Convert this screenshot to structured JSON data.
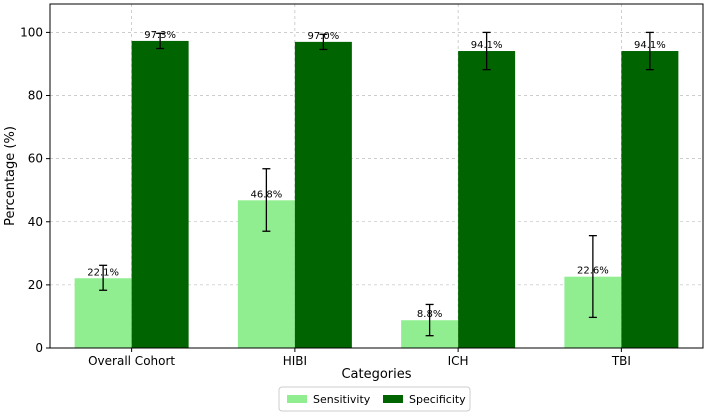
{
  "chart_data": {
    "type": "bar",
    "categories": [
      "Overall Cohort",
      "HIBI",
      "ICH",
      "TBI"
    ],
    "series": [
      {
        "name": "Sensitivity",
        "color": "#90EE90",
        "values": [
          22.1,
          46.8,
          8.8,
          22.6
        ],
        "labels": [
          "22.1%",
          "46.8%",
          "8.8%",
          "22.6%"
        ],
        "error_low": [
          18.3,
          37.0,
          3.9,
          9.7
        ],
        "error_high": [
          26.2,
          56.8,
          13.8,
          35.6
        ]
      },
      {
        "name": "Specificity",
        "color": "#006400",
        "values": [
          97.3,
          97.0,
          94.1,
          94.1
        ],
        "labels": [
          "97.3%",
          "97.0%",
          "94.1%",
          "94.1%"
        ],
        "error_low": [
          94.9,
          94.6,
          88.2,
          88.2
        ],
        "error_high": [
          99.7,
          99.4,
          100.0,
          100.0
        ]
      }
    ],
    "title": "",
    "xlabel": "Categories",
    "ylabel": "Percentage (%)",
    "ylim": [
      0,
      109
    ],
    "yticks": [
      0,
      20,
      40,
      60,
      80,
      100
    ],
    "grid": true,
    "legend_position": "bottom-center"
  }
}
